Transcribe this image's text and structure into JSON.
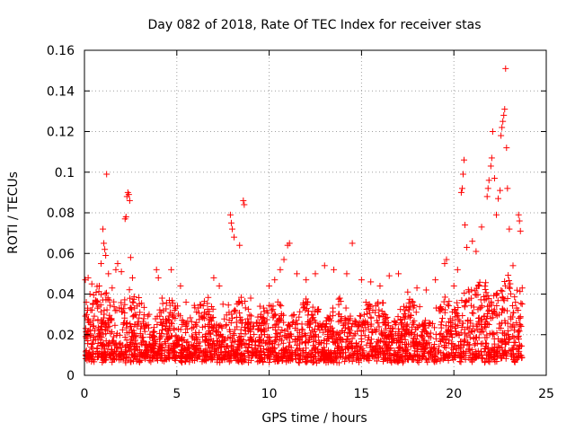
{
  "chart_data": {
    "type": "scatter",
    "title": "Day 082 of 2018, Rate Of TEC Index for receiver stas",
    "xlabel": "GPS time / hours",
    "ylabel": "ROTI / TECUs",
    "xlim": [
      0,
      25
    ],
    "ylim": [
      0,
      0.16
    ],
    "xticks": [
      "0",
      "5",
      "10",
      "15",
      "20",
      "25"
    ],
    "yticks": [
      "0",
      "0.02",
      "0.04",
      "0.06",
      "0.08",
      "0.1",
      "0.12",
      "0.14",
      "0.16"
    ],
    "grid": true,
    "marker": "plus",
    "color": "#ff0000",
    "series": [
      {
        "name": "ROTI",
        "points": [
          [
            0.05,
            0.047
          ],
          [
            0.1,
            0.036
          ],
          [
            0.2,
            0.048
          ],
          [
            0.3,
            0.04
          ],
          [
            0.4,
            0.045
          ],
          [
            0.6,
            0.037
          ],
          [
            0.8,
            0.044
          ],
          [
            0.9,
            0.055
          ],
          [
            1.0,
            0.072
          ],
          [
            1.05,
            0.065
          ],
          [
            1.1,
            0.062
          ],
          [
            1.15,
            0.059
          ],
          [
            1.2,
            0.099
          ],
          [
            1.3,
            0.05
          ],
          [
            1.5,
            0.043
          ],
          [
            1.7,
            0.052
          ],
          [
            1.8,
            0.055
          ],
          [
            2.0,
            0.051
          ],
          [
            2.2,
            0.077
          ],
          [
            2.25,
            0.078
          ],
          [
            2.3,
            0.088
          ],
          [
            2.35,
            0.09
          ],
          [
            2.4,
            0.089
          ],
          [
            2.45,
            0.086
          ],
          [
            2.5,
            0.058
          ],
          [
            2.6,
            0.048
          ],
          [
            3.0,
            0.031
          ],
          [
            3.5,
            0.03
          ],
          [
            3.9,
            0.052
          ],
          [
            4.0,
            0.048
          ],
          [
            4.2,
            0.038
          ],
          [
            4.7,
            0.052
          ],
          [
            5.2,
            0.044
          ],
          [
            5.5,
            0.036
          ],
          [
            6.0,
            0.025
          ],
          [
            6.5,
            0.028
          ],
          [
            7.0,
            0.048
          ],
          [
            7.3,
            0.044
          ],
          [
            7.5,
            0.035
          ],
          [
            7.9,
            0.079
          ],
          [
            7.95,
            0.075
          ],
          [
            8.0,
            0.072
          ],
          [
            8.1,
            0.068
          ],
          [
            8.4,
            0.064
          ],
          [
            8.6,
            0.086
          ],
          [
            8.65,
            0.084
          ],
          [
            9.0,
            0.038
          ],
          [
            9.5,
            0.034
          ],
          [
            10.0,
            0.044
          ],
          [
            10.3,
            0.047
          ],
          [
            10.6,
            0.052
          ],
          [
            10.8,
            0.057
          ],
          [
            11.0,
            0.064
          ],
          [
            11.1,
            0.065
          ],
          [
            11.5,
            0.05
          ],
          [
            12.0,
            0.047
          ],
          [
            12.5,
            0.05
          ],
          [
            13.0,
            0.054
          ],
          [
            13.5,
            0.052
          ],
          [
            14.2,
            0.05
          ],
          [
            14.5,
            0.065
          ],
          [
            15.0,
            0.047
          ],
          [
            15.5,
            0.046
          ],
          [
            16.0,
            0.044
          ],
          [
            16.5,
            0.049
          ],
          [
            17.0,
            0.05
          ],
          [
            17.5,
            0.041
          ],
          [
            18.0,
            0.043
          ],
          [
            18.5,
            0.042
          ],
          [
            19.0,
            0.047
          ],
          [
            19.5,
            0.055
          ],
          [
            19.6,
            0.057
          ],
          [
            20.0,
            0.044
          ],
          [
            20.2,
            0.052
          ],
          [
            20.4,
            0.09
          ],
          [
            20.45,
            0.092
          ],
          [
            20.5,
            0.099
          ],
          [
            20.55,
            0.106
          ],
          [
            20.6,
            0.074
          ],
          [
            20.7,
            0.063
          ],
          [
            21.0,
            0.066
          ],
          [
            21.2,
            0.061
          ],
          [
            21.5,
            0.073
          ],
          [
            21.8,
            0.088
          ],
          [
            21.85,
            0.092
          ],
          [
            21.9,
            0.096
          ],
          [
            22.0,
            0.103
          ],
          [
            22.05,
            0.107
          ],
          [
            22.1,
            0.12
          ],
          [
            22.2,
            0.097
          ],
          [
            22.3,
            0.079
          ],
          [
            22.4,
            0.087
          ],
          [
            22.5,
            0.091
          ],
          [
            22.55,
            0.118
          ],
          [
            22.6,
            0.122
          ],
          [
            22.65,
            0.125
          ],
          [
            22.7,
            0.128
          ],
          [
            22.75,
            0.131
          ],
          [
            22.8,
            0.151
          ],
          [
            22.85,
            0.112
          ],
          [
            22.9,
            0.092
          ],
          [
            23.0,
            0.072
          ],
          [
            23.2,
            0.054
          ],
          [
            23.5,
            0.079
          ],
          [
            23.55,
            0.076
          ],
          [
            23.6,
            0.071
          ],
          [
            23.7,
            0.043
          ]
        ]
      }
    ]
  }
}
